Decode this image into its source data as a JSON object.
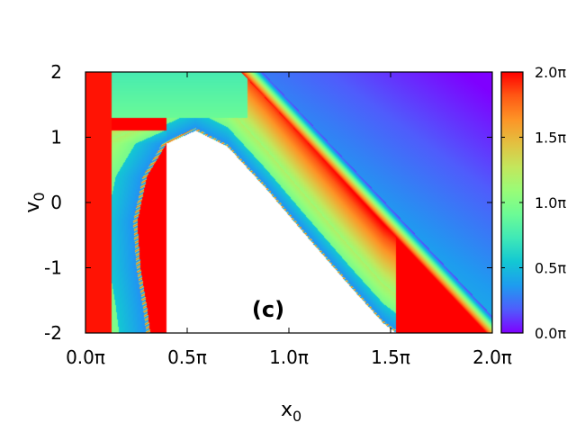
{
  "chart_data": {
    "type": "heatmap",
    "title": "",
    "annotation": "(c)",
    "xlabel": "x",
    "xlabel_sub": "0",
    "ylabel": "v",
    "ylabel_sub": "0",
    "x_range": [
      0,
      6.2832
    ],
    "y_range": [
      -2,
      2
    ],
    "x_tick_labels": [
      "0.0π",
      "0.5π",
      "1.0π",
      "1.5π",
      "2.0π"
    ],
    "x_ticks": [
      0,
      1.5708,
      3.1416,
      4.7124,
      6.2832
    ],
    "y_tick_labels": [
      "2",
      "1",
      "0",
      "-1",
      "-2"
    ],
    "y_ticks": [
      2,
      1,
      0,
      -1,
      -2
    ],
    "colorbar": {
      "range": [
        0,
        6.2832
      ],
      "tick_labels": [
        "2.0π",
        "1.5π",
        "1.0π",
        "0.5π",
        "0.0π"
      ],
      "ticks": [
        6.2832,
        4.7124,
        3.1416,
        1.5708,
        0
      ],
      "colormap": "rainbow",
      "colors": [
        "#7f00ff",
        "#4f5dfc",
        "#1e9cef",
        "#13c7d3",
        "#3fe8b7",
        "#6cfb95",
        "#99fc77",
        "#c3e65c",
        "#e3c040",
        "#fd9426",
        "#ff5814",
        "#ff0000"
      ]
    },
    "white_region": "undefined (no value) region in lower-left interior"
  }
}
